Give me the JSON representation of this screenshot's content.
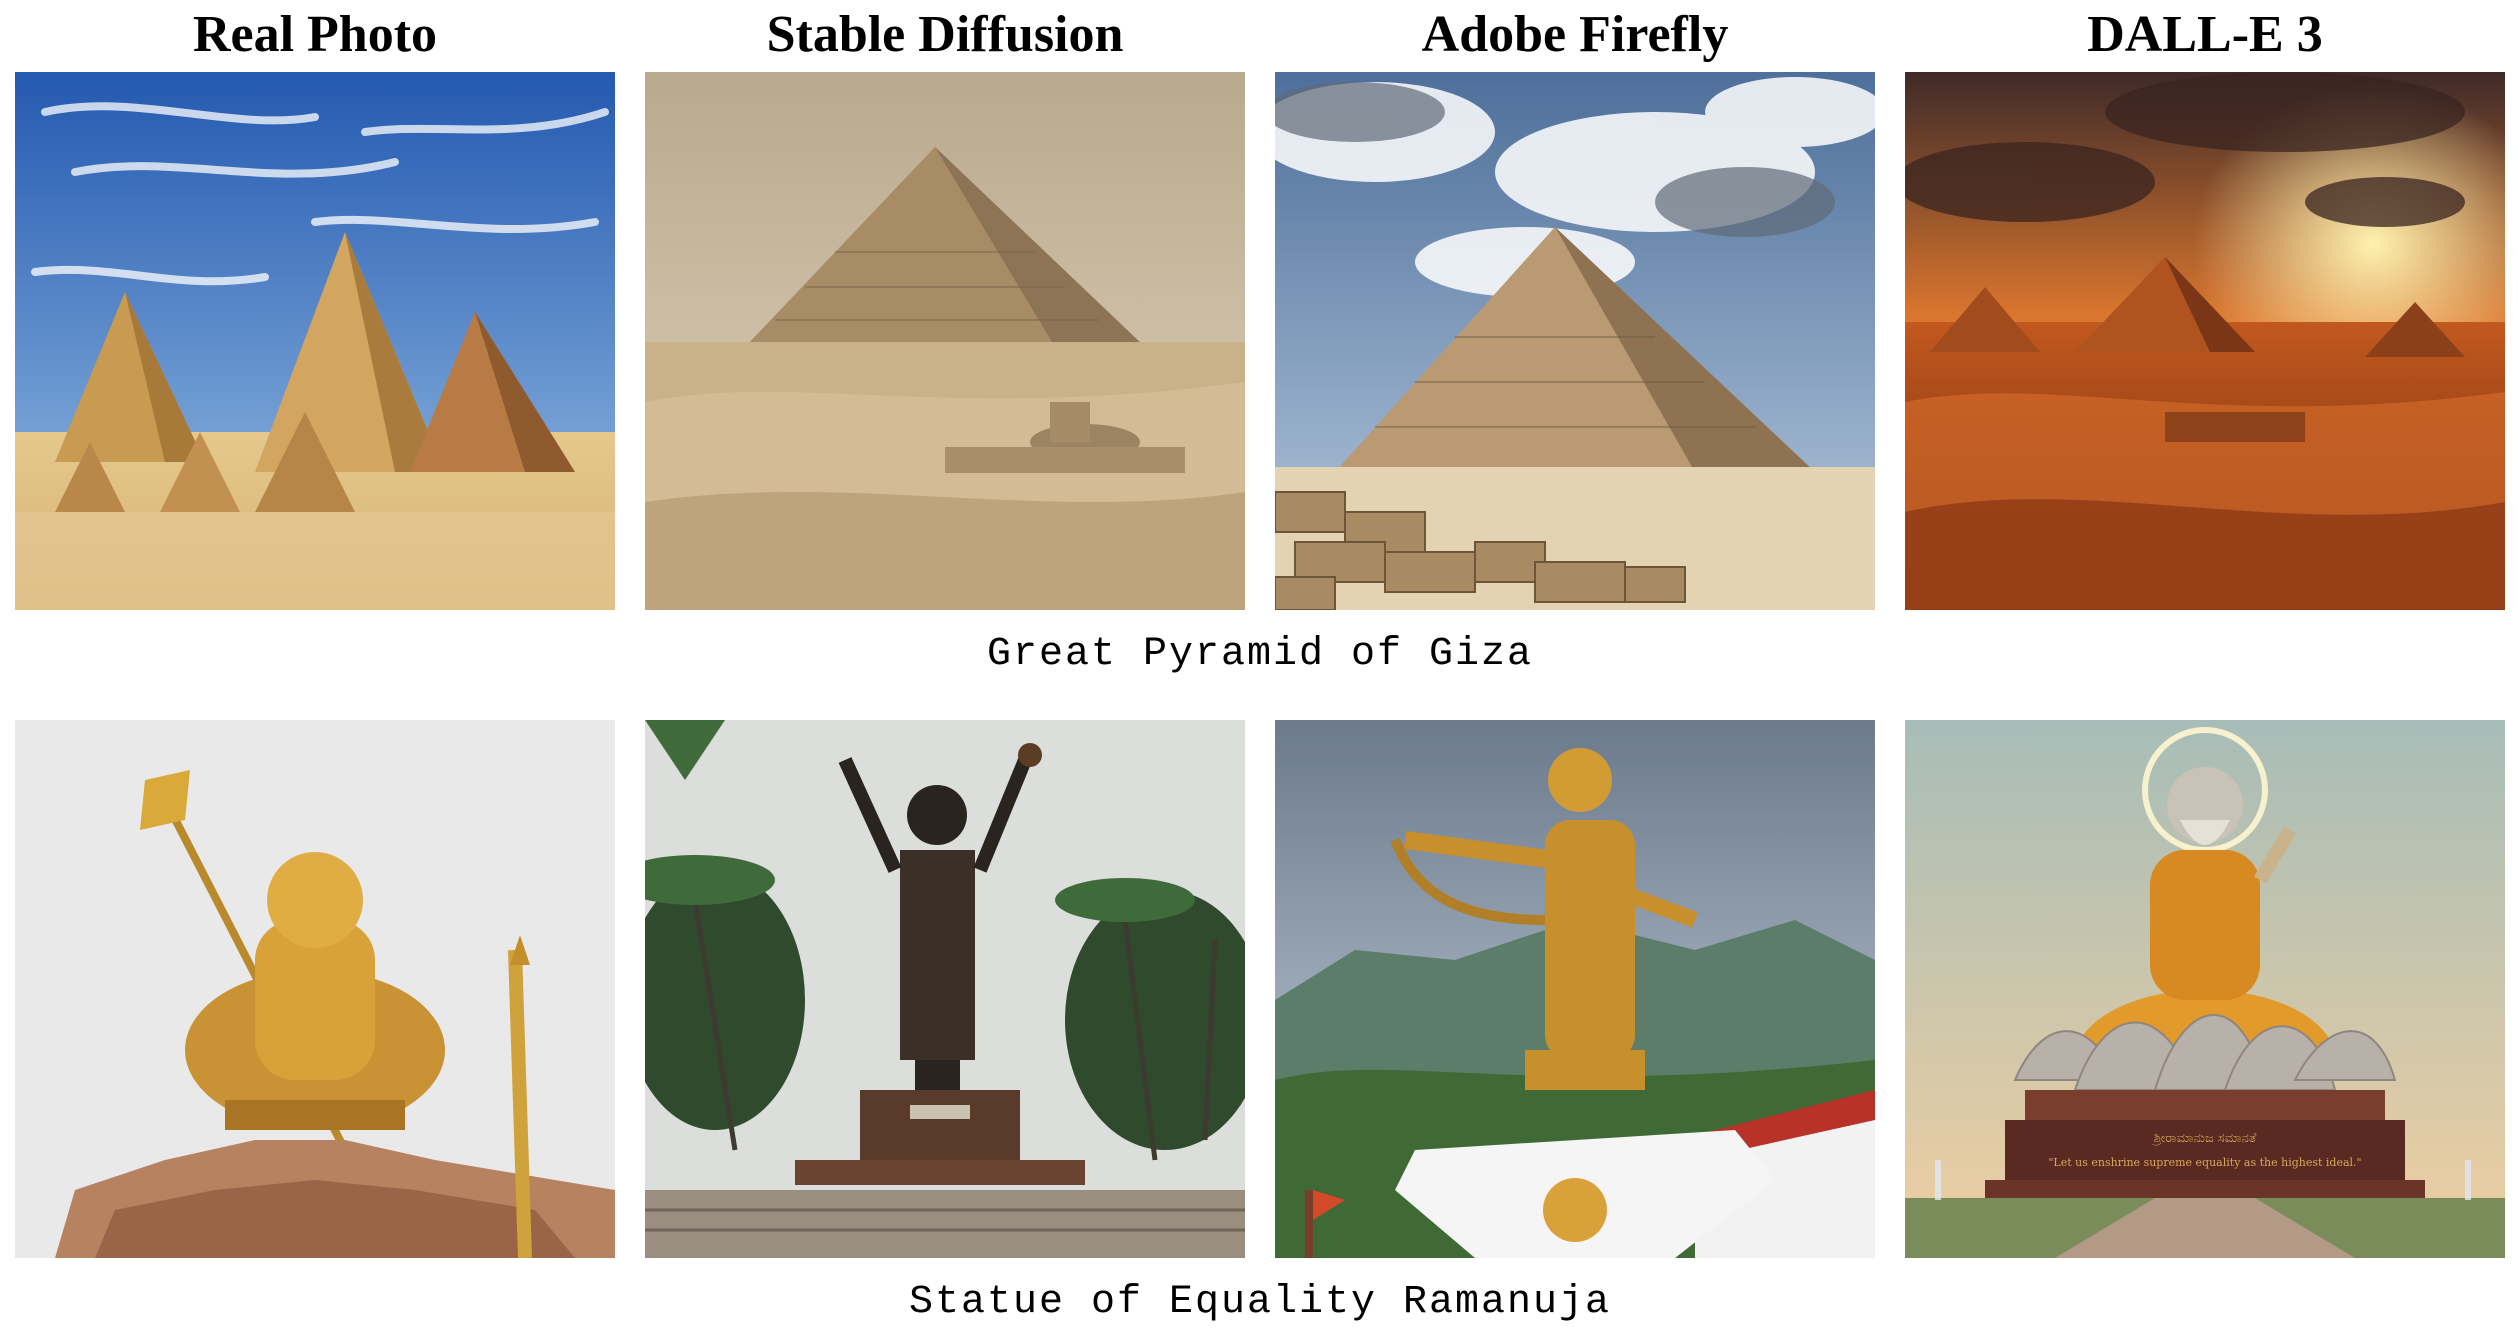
{
  "columns": [
    {
      "label": "Real Photo"
    },
    {
      "label": "Stable Diffusion"
    },
    {
      "label": "Adobe Firefly"
    },
    {
      "label": "DALL-E 3"
    }
  ],
  "rows": [
    {
      "caption": "Great Pyramid of Giza"
    },
    {
      "caption": "Statue of Equality Ramanuja"
    }
  ],
  "inscription": {
    "line1": "ಶ್ರೀರಾಮಾನುಜ ಸಮಾನತೆ",
    "line2": "\"Let us enshrine supreme equality as the highest ideal.\""
  },
  "colors": {
    "sky_blue": "#2f6fbf",
    "sand": "#d9b878",
    "sunset": "#e27a2a",
    "gold": "#d9a32a"
  }
}
